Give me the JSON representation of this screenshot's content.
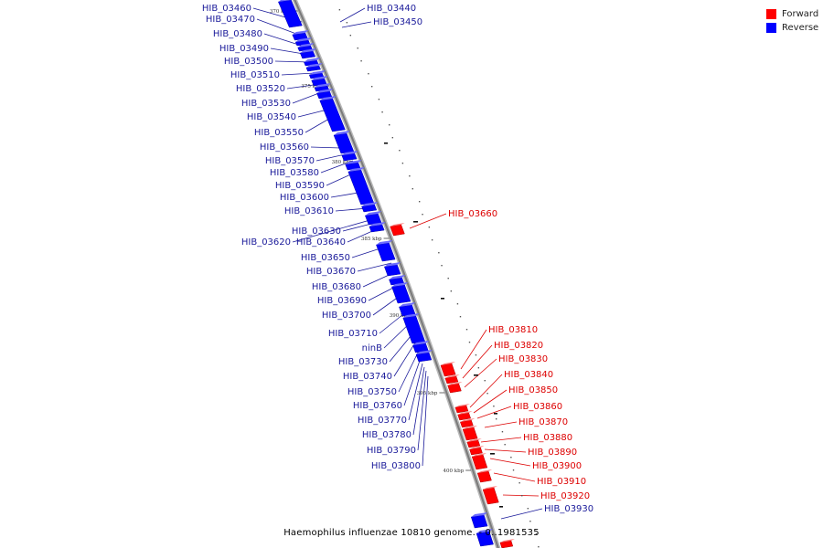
{
  "title": "Haemophilus influenzae 10810 genome. - 0..1981535",
  "legend": {
    "forward": {
      "label": "Forward",
      "color": "#ff0000"
    },
    "reverse": {
      "label": "Reverse",
      "color": "#0000ff"
    }
  },
  "ticks": [
    {
      "label": "370 kbp",
      "kbp": 370
    },
    {
      "label": "375 kbp",
      "kbp": 375
    },
    {
      "label": "380 kbp",
      "kbp": 380
    },
    {
      "label": "385 kbp",
      "kbp": 385
    },
    {
      "label": "390 kbp",
      "kbp": 390
    },
    {
      "label": "395 kbp",
      "kbp": 395
    },
    {
      "label": "400 kbp",
      "kbp": 400
    }
  ],
  "genes": [
    {
      "name": "HIB_03440",
      "strand": "reverse"
    },
    {
      "name": "HIB_03450",
      "strand": "reverse"
    },
    {
      "name": "HIB_03460",
      "strand": "reverse"
    },
    {
      "name": "HIB_03470",
      "strand": "reverse"
    },
    {
      "name": "HIB_03480",
      "strand": "reverse"
    },
    {
      "name": "HIB_03490",
      "strand": "reverse"
    },
    {
      "name": "HIB_03500",
      "strand": "reverse"
    },
    {
      "name": "HIB_03510",
      "strand": "reverse"
    },
    {
      "name": "HIB_03520",
      "strand": "reverse"
    },
    {
      "name": "HIB_03530",
      "strand": "reverse"
    },
    {
      "name": "HIB_03540",
      "strand": "reverse"
    },
    {
      "name": "HIB_03550",
      "strand": "reverse"
    },
    {
      "name": "HIB_03560",
      "strand": "reverse"
    },
    {
      "name": "HIB_03570",
      "strand": "reverse"
    },
    {
      "name": "HIB_03580",
      "strand": "reverse"
    },
    {
      "name": "HIB_03590",
      "strand": "reverse"
    },
    {
      "name": "HIB_03600",
      "strand": "reverse"
    },
    {
      "name": "HIB_03610",
      "strand": "reverse"
    },
    {
      "name": "HIB_03620",
      "strand": "reverse"
    },
    {
      "name": "HIB_03630",
      "strand": "reverse"
    },
    {
      "name": "HIB_03640",
      "strand": "reverse"
    },
    {
      "name": "HIB_03650",
      "strand": "reverse"
    },
    {
      "name": "HIB_03660",
      "strand": "forward"
    },
    {
      "name": "HIB_03670",
      "strand": "reverse"
    },
    {
      "name": "HIB_03680",
      "strand": "reverse"
    },
    {
      "name": "HIB_03690",
      "strand": "reverse"
    },
    {
      "name": "HIB_03700",
      "strand": "reverse"
    },
    {
      "name": "HIB_03710",
      "strand": "reverse"
    },
    {
      "name": "ninB",
      "strand": "reverse"
    },
    {
      "name": "HIB_03730",
      "strand": "reverse"
    },
    {
      "name": "HIB_03740",
      "strand": "reverse"
    },
    {
      "name": "HIB_03750",
      "strand": "reverse"
    },
    {
      "name": "HIB_03760",
      "strand": "reverse"
    },
    {
      "name": "HIB_03770",
      "strand": "reverse"
    },
    {
      "name": "HIB_03780",
      "strand": "reverse"
    },
    {
      "name": "HIB_03790",
      "strand": "reverse"
    },
    {
      "name": "HIB_03800",
      "strand": "reverse"
    },
    {
      "name": "HIB_03810",
      "strand": "forward"
    },
    {
      "name": "HIB_03820",
      "strand": "forward"
    },
    {
      "name": "HIB_03830",
      "strand": "forward"
    },
    {
      "name": "HIB_03840",
      "strand": "forward"
    },
    {
      "name": "HIB_03850",
      "strand": "forward"
    },
    {
      "name": "HIB_03860",
      "strand": "forward"
    },
    {
      "name": "HIB_03870",
      "strand": "forward"
    },
    {
      "name": "HIB_03880",
      "strand": "forward"
    },
    {
      "name": "HIB_03890",
      "strand": "forward"
    },
    {
      "name": "HIB_03900",
      "strand": "forward"
    },
    {
      "name": "HIB_03910",
      "strand": "forward"
    },
    {
      "name": "HIB_03920",
      "strand": "forward"
    },
    {
      "name": "HIB_03930",
      "strand": "reverse"
    }
  ]
}
